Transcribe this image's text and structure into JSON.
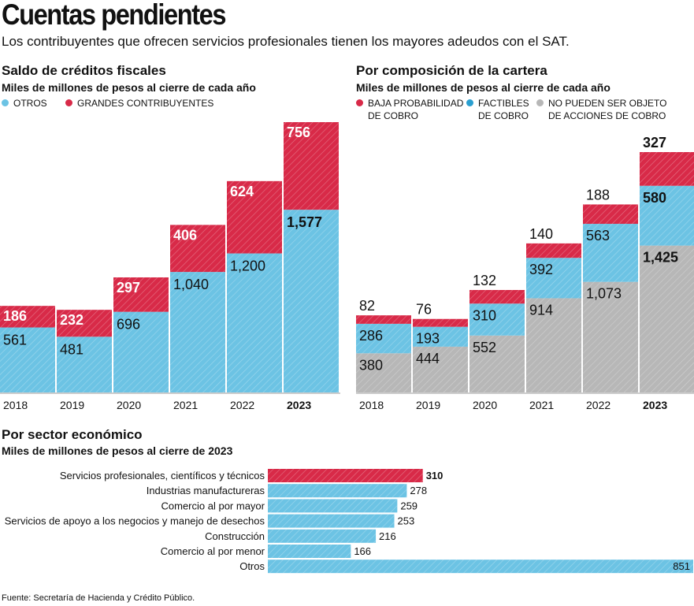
{
  "header": {
    "title": "Cuentas pendientes",
    "subtitle": "Los contribuyentes que ofrecen servicios profesionales tienen los mayores adeudos con el SAT."
  },
  "source": "Fuente: Secretaría de Hacienda y Crédito Público.",
  "colors": {
    "red": "#d82a48",
    "blue": "#6cc3e4",
    "gray": "#b7b7b7"
  },
  "chart_data": [
    {
      "type": "bar",
      "stacked": true,
      "title": "Saldo de créditos fiscales",
      "subtitle": "Miles de millones de pesos al cierre de cada año",
      "categories": [
        "2018",
        "2019",
        "2020",
        "2021",
        "2022",
        "2023"
      ],
      "legend": [
        "OTROS",
        "GRANDES CONTRIBUYENTES"
      ],
      "series": [
        {
          "name": "OTROS",
          "color": "#6cc3e4",
          "values": [
            561,
            481,
            696,
            1040,
            1200,
            1577
          ],
          "labels": [
            "561",
            "481",
            "696",
            "1,040",
            "1,200",
            "1,577"
          ]
        },
        {
          "name": "GRANDES CONTRIBUYENTES",
          "color": "#d82a48",
          "values": [
            186,
            232,
            297,
            406,
            624,
            756
          ],
          "labels": [
            "186",
            "232",
            "297",
            "406",
            "624",
            "756"
          ]
        }
      ],
      "highlight_category": "2023",
      "grid": false
    },
    {
      "type": "bar",
      "stacked": true,
      "title": "Por composición de la cartera",
      "subtitle": "Miles de millones de pesos al cierre de cada año",
      "categories": [
        "2018",
        "2019",
        "2020",
        "2021",
        "2022",
        "2023"
      ],
      "legend": [
        [
          "BAJA PROBABILIDAD",
          "DE COBRO"
        ],
        [
          "FACTIBLES",
          "DE COBRO"
        ],
        [
          "NO PUEDEN SER OBJETO",
          "DE ACCIONES DE COBRO"
        ]
      ],
      "series": [
        {
          "name": "NO PUEDEN SER OBJETO DE ACCIONES DE COBRO",
          "color": "#b7b7b7",
          "values": [
            380,
            444,
            552,
            914,
            1073,
            1425
          ],
          "labels": [
            "380",
            "444",
            "552",
            "914",
            "1,073",
            "1,425"
          ]
        },
        {
          "name": "FACTIBLES DE COBRO",
          "color": "#6cc3e4",
          "values": [
            286,
            193,
            310,
            392,
            563,
            580
          ],
          "labels": [
            "286",
            "193",
            "310",
            "392",
            "563",
            "580"
          ]
        },
        {
          "name": "BAJA PROBABILIDAD DE COBRO",
          "color": "#d82a48",
          "values": [
            82,
            76,
            132,
            140,
            188,
            327
          ],
          "labels": [
            "82",
            "76",
            "132",
            "140",
            "188",
            "327"
          ]
        }
      ],
      "highlight_category": "2023",
      "grid": false
    },
    {
      "type": "bar",
      "orientation": "horizontal",
      "title": "Por sector económico",
      "subtitle": "Miles de millones de pesos al cierre de 2023",
      "categories": [
        "Servicios profesionales, científicos y técnicos",
        "Industrias manufactureras",
        "Comercio al por mayor",
        "Servicios de apoyo a los negocios y manejo de desechos",
        "Construcción",
        "Comercio al por menor",
        "Otros"
      ],
      "values": [
        310,
        278,
        259,
        253,
        216,
        166,
        851
      ],
      "highlight_index": 0,
      "grid": false
    }
  ]
}
